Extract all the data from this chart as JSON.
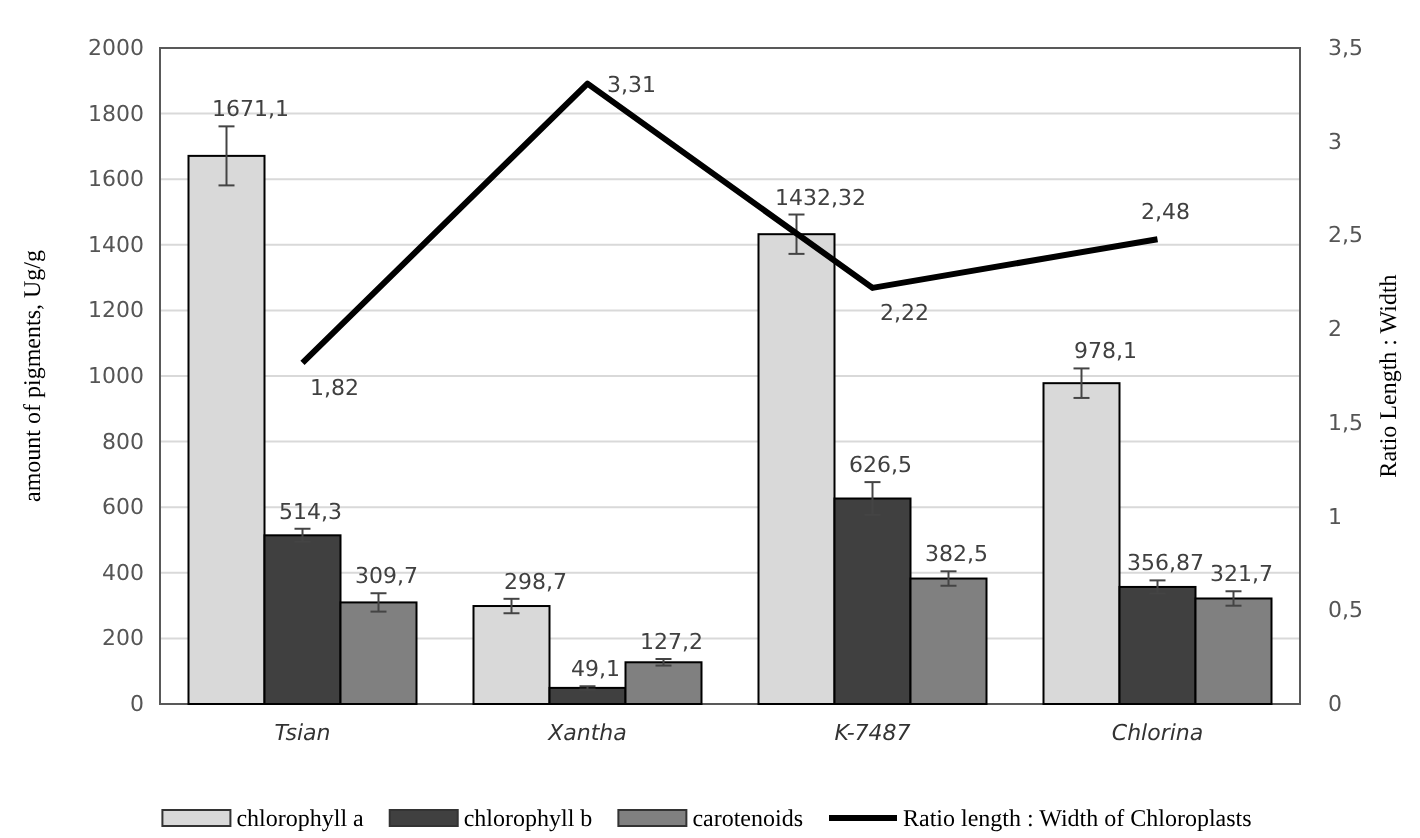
{
  "chart_data": {
    "type": "bar",
    "ylabel": "amount of pigments, Ug/g",
    "y2label": "Ratio Length : Width",
    "categories": [
      "Tsian",
      "Xantha",
      "K-7487",
      "Chlorina"
    ],
    "series": [
      {
        "name": "chlorophyll a",
        "color": "#d9d9d9",
        "values": [
          1671.1,
          298.7,
          1432.32,
          978.1
        ],
        "errors": [
          90,
          22,
          60,
          45
        ],
        "value_labels": [
          "1671,1",
          "298,7",
          "1432,32",
          "978,1"
        ]
      },
      {
        "name": "chlorophyll b",
        "color": "#404040",
        "values": [
          514.3,
          49.1,
          626.5,
          356.87
        ],
        "errors": [
          20,
          5,
          50,
          20
        ],
        "value_labels": [
          "514,3",
          "49,1",
          "626,5",
          "356,87"
        ]
      },
      {
        "name": "carotenoids",
        "color": "#808080",
        "values": [
          309.7,
          127.2,
          382.5,
          321.7
        ],
        "errors": [
          28,
          10,
          22,
          22
        ],
        "value_labels": [
          "309,7",
          "127,2",
          "382,5",
          "321,7"
        ]
      },
      {
        "name": "Ratio length : Width of Chloroplasts",
        "type": "line",
        "axis": "y2",
        "color": "#000000",
        "values": [
          1.82,
          3.31,
          2.22,
          2.48
        ],
        "value_labels": [
          "1,82",
          "3,31",
          "2,22",
          "2,48"
        ]
      }
    ],
    "ylim": [
      0,
      2000
    ],
    "yticks": [
      0,
      200,
      400,
      600,
      800,
      1000,
      1200,
      1400,
      1600,
      1800,
      2000
    ],
    "y2lim": [
      0,
      3.5
    ],
    "y2ticks": [
      0,
      {
        "value": 0.5,
        "label": "0,5"
      },
      1,
      {
        "value": 1.5,
        "label": "1,5"
      },
      2,
      {
        "value": 2.5,
        "label": "2,5"
      },
      3,
      {
        "value": 3.5,
        "label": "3,5"
      }
    ],
    "grid": "y",
    "legend": "bottom",
    "marker": "none",
    "line_style": "solid"
  }
}
